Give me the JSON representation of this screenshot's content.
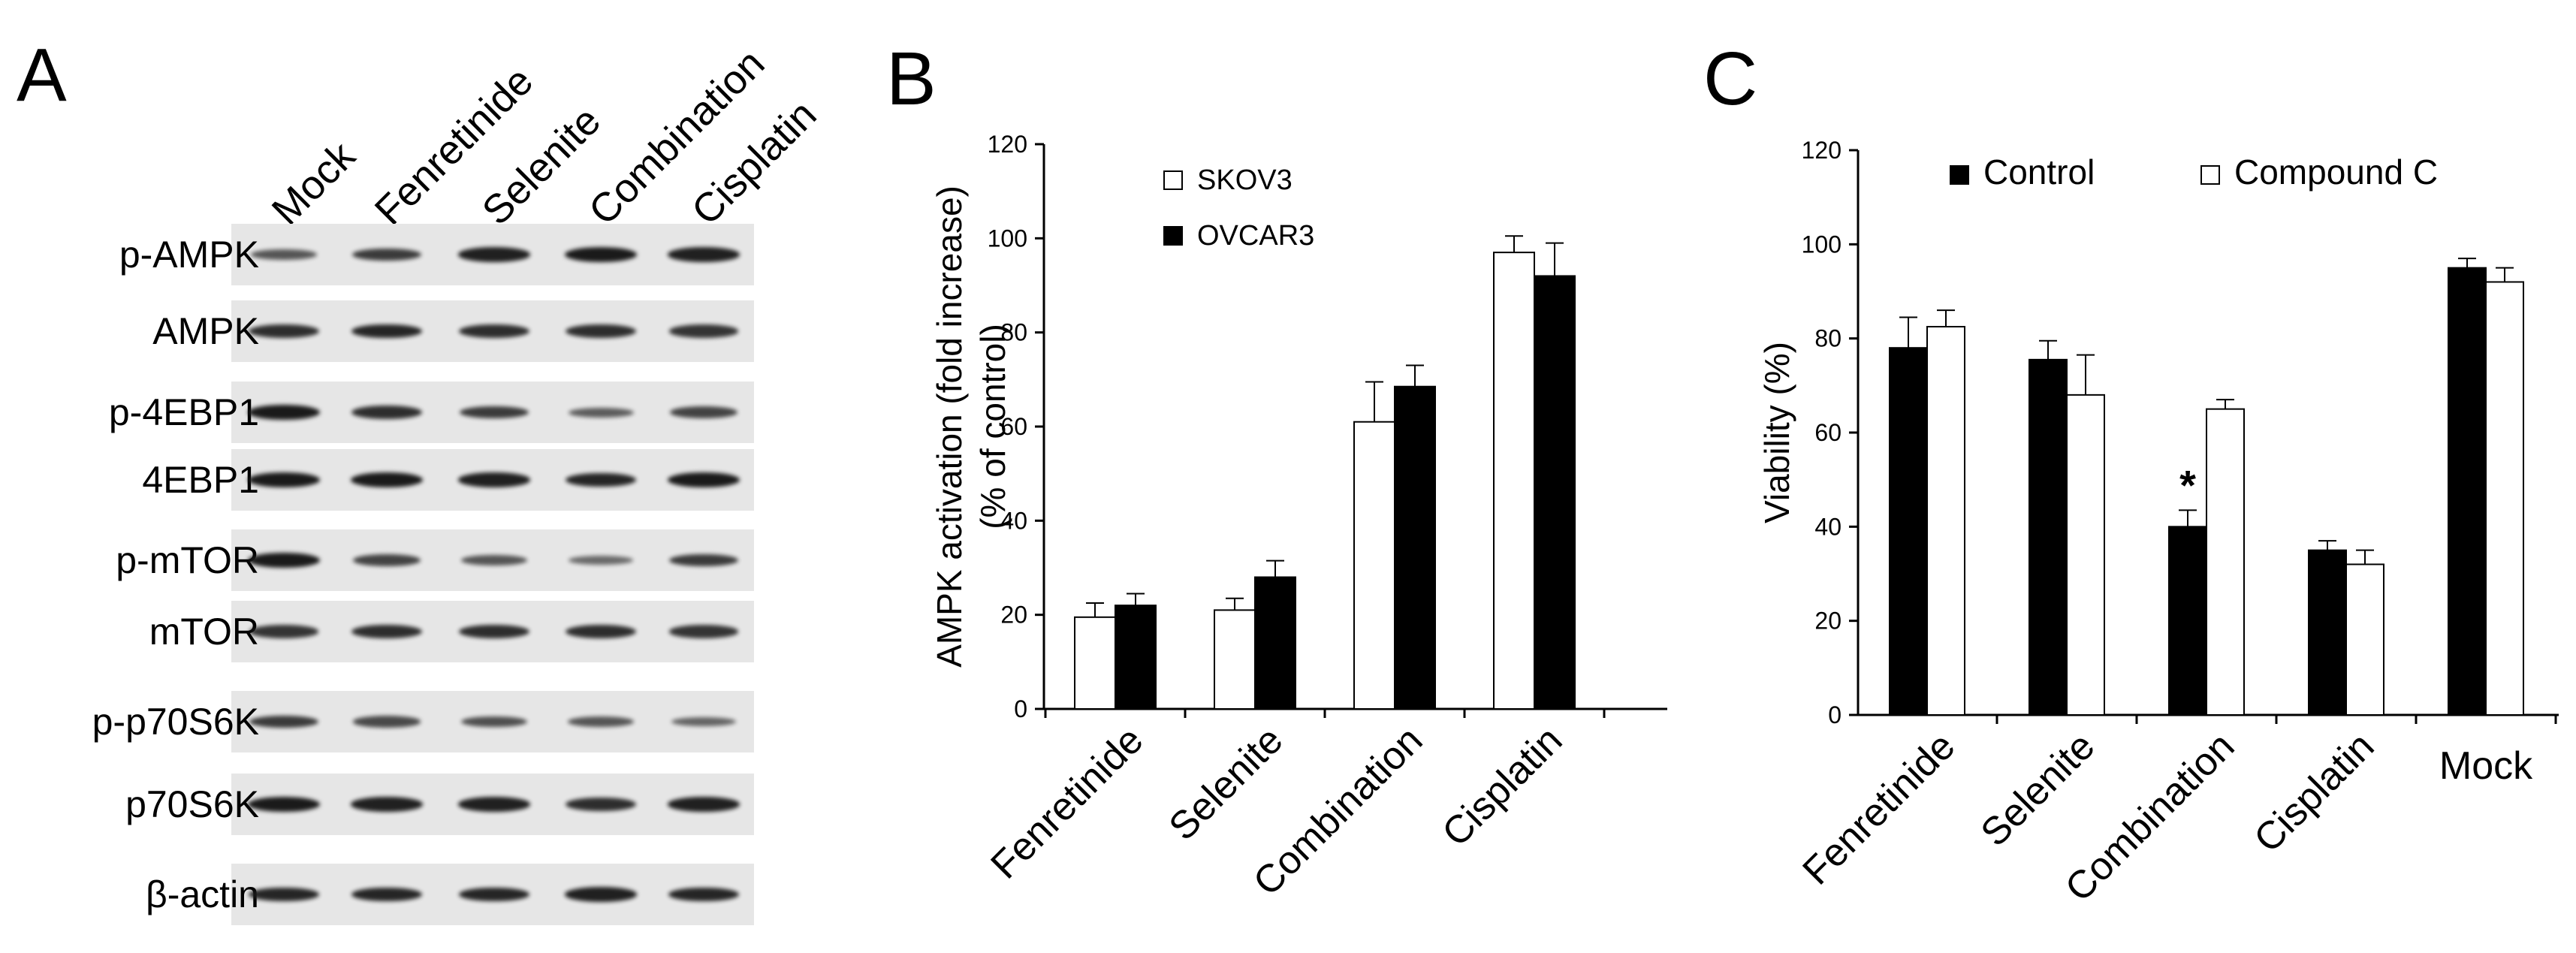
{
  "panels": {
    "a_letter": "A",
    "b_letter": "B",
    "c_letter": "C"
  },
  "blot": {
    "lanes": [
      "Mock",
      "Fenretinide",
      "Selenite",
      "Combination",
      "Cisplatin"
    ],
    "rows": [
      {
        "label": "p-AMPK"
      },
      {
        "label": "AMPK"
      },
      {
        "label": "p-4EBP1"
      },
      {
        "label": "4EBP1"
      },
      {
        "label": "p-mTOR"
      },
      {
        "label": "mTOR"
      },
      {
        "label": "p-p70S6K"
      },
      {
        "label": "p70S6K"
      },
      {
        "label": "β-actin"
      }
    ],
    "band_intensity": [
      [
        0.55,
        0.75,
        0.95,
        1.0,
        0.95
      ],
      [
        0.85,
        0.9,
        0.85,
        0.85,
        0.8
      ],
      [
        1.0,
        0.85,
        0.75,
        0.5,
        0.7
      ],
      [
        1.0,
        1.0,
        0.95,
        0.9,
        1.0
      ],
      [
        1.0,
        0.7,
        0.55,
        0.4,
        0.75
      ],
      [
        0.8,
        0.85,
        0.85,
        0.85,
        0.8
      ],
      [
        0.75,
        0.65,
        0.6,
        0.55,
        0.45
      ],
      [
        1.0,
        0.95,
        0.95,
        0.85,
        0.95
      ],
      [
        0.9,
        0.9,
        0.9,
        0.95,
        0.9
      ]
    ]
  },
  "chart_data": [
    {
      "type": "bar",
      "panel": "B",
      "title": "",
      "ylabel_line1": "AMPK activation (fold increase)",
      "ylabel_line2": "(% of control)",
      "xlabel": "",
      "categories": [
        "Fenretinide",
        "Selenite",
        "Combination",
        "Cisplatin"
      ],
      "ylim": [
        0,
        120
      ],
      "yticks": [
        0,
        20,
        40,
        60,
        80,
        100,
        120
      ],
      "legend": "top-left",
      "series": [
        {
          "name": "SKOV3",
          "fill": "#ffffff",
          "values": [
            19.5,
            21,
            61,
            97
          ],
          "errors": [
            3,
            2.5,
            8.5,
            3.5
          ]
        },
        {
          "name": "OVCAR3",
          "fill": "#000000",
          "values": [
            22,
            28,
            68.5,
            92
          ],
          "errors": [
            2.5,
            3.5,
            4.5,
            7
          ]
        }
      ]
    },
    {
      "type": "bar",
      "panel": "C",
      "title": "",
      "ylabel": "Viability (%)",
      "xlabel": "",
      "categories": [
        "Fenretinide",
        "Selenite",
        "Combination",
        "Cisplatin",
        "Mock"
      ],
      "ylim": [
        0,
        120
      ],
      "yticks": [
        0,
        20,
        40,
        60,
        80,
        100,
        120
      ],
      "legend": "top",
      "annotation": {
        "text": "*",
        "category": "Combination",
        "series": "Control"
      },
      "series": [
        {
          "name": "Control",
          "fill": "#000000",
          "values": [
            78,
            75.5,
            40,
            35,
            95
          ],
          "errors": [
            6.5,
            4,
            3.5,
            2,
            2
          ]
        },
        {
          "name": "Compound C",
          "fill": "#ffffff",
          "values": [
            82.5,
            68,
            65,
            32,
            92
          ],
          "errors": [
            3.5,
            8.5,
            2,
            3,
            3
          ]
        }
      ]
    }
  ]
}
